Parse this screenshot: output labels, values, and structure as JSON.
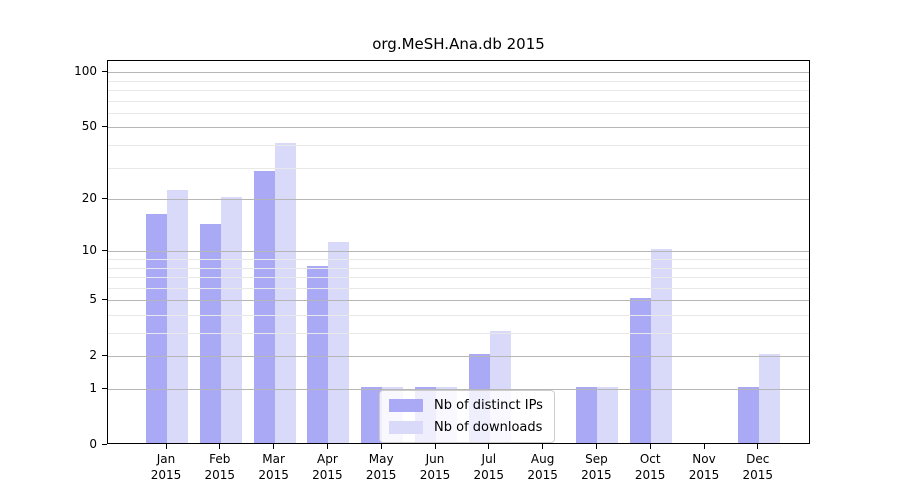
{
  "title": "org.MeSH.Ana.db 2015",
  "chart_data": {
    "type": "bar",
    "title": "org.MeSH.Ana.db 2015",
    "categories": [
      "Jan",
      "Feb",
      "Mar",
      "Apr",
      "May",
      "Jun",
      "Jul",
      "Aug",
      "Sep",
      "Oct",
      "Nov",
      "Dec"
    ],
    "year": "2015",
    "series": [
      {
        "name": "Nb of distinct IPs",
        "color": "#a9a9f6",
        "values": [
          16,
          14,
          28,
          8,
          1,
          1,
          2,
          0,
          1,
          5,
          0,
          1
        ]
      },
      {
        "name": "Nb of downloads",
        "color": "#d9d9f9",
        "values": [
          22,
          20,
          40,
          11,
          1,
          1,
          3,
          0,
          1,
          10,
          0,
          2
        ]
      }
    ],
    "xlabel": "",
    "ylabel": "",
    "yscale": "log1p",
    "ylim": [
      0,
      115
    ],
    "yticks": [
      0,
      1,
      2,
      5,
      10,
      20,
      50,
      100
    ],
    "yticks_minor": [
      3,
      4,
      6,
      7,
      8,
      9,
      30,
      40,
      60,
      70,
      80,
      90
    ],
    "grid": "horizontal major and minor, drawn over bars",
    "legend_position": "inside lower-center-left"
  },
  "legend": {
    "items": [
      {
        "label": "Nb of distinct IPs"
      },
      {
        "label": "Nb of downloads"
      }
    ]
  },
  "colors": {
    "bar_distinct_ips": "#a9a9f6",
    "bar_downloads": "#d9d9f9",
    "grid_major": "#b6b6b6",
    "grid_minor": "#e8e8e8",
    "axis": "#000000",
    "text": "#000000",
    "background": "#ffffff",
    "legend_border": "#cccccc"
  }
}
